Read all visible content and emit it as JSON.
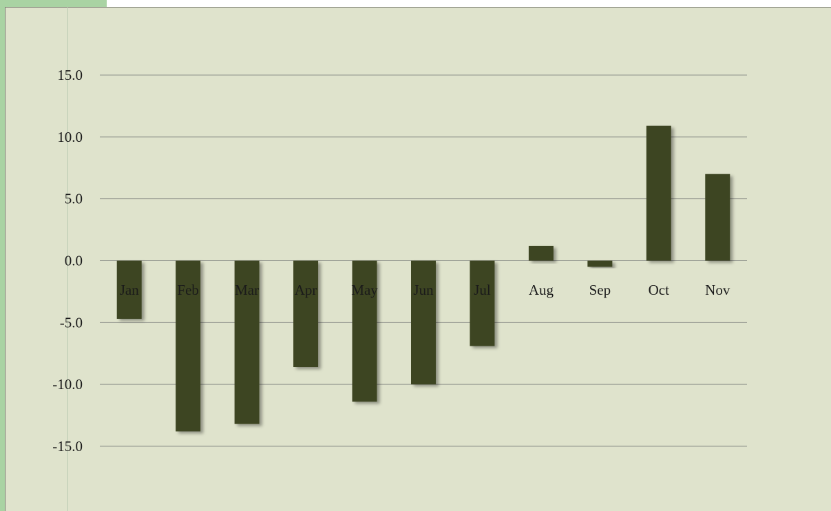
{
  "chart_data": {
    "type": "bar",
    "title": "",
    "xlabel": "",
    "ylabel": "",
    "categories": [
      "Jan",
      "Feb",
      "Mar",
      "Apr",
      "May",
      "Jun",
      "Jul",
      "Aug",
      "Sep",
      "Oct",
      "Nov"
    ],
    "values": [
      -4.7,
      -13.8,
      -13.2,
      -8.6,
      -11.4,
      -10.0,
      -6.9,
      1.2,
      -0.5,
      10.9,
      7.0
    ],
    "ylim": [
      -15,
      15
    ],
    "yticks": [
      "15.0",
      "10.0",
      "5.0",
      "0.0",
      "-5.0",
      "-10.0",
      "-15.0"
    ],
    "grid": true,
    "legend": "none",
    "colors": {
      "bar": "#3d4423",
      "background": "#dfe3cc",
      "frame": "#a9d3a3",
      "gridline": "#8e918a"
    }
  }
}
